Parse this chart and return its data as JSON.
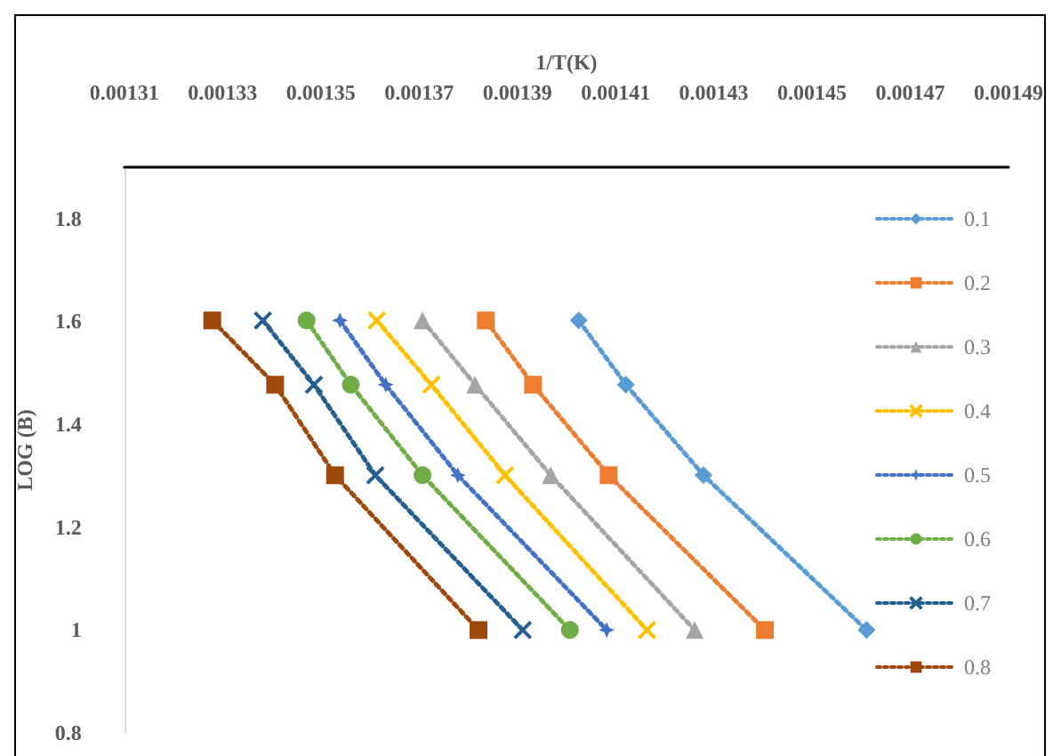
{
  "chart_data": {
    "type": "line",
    "xlabel": "1/T(K)",
    "ylabel": "LOG (B)",
    "xlim": [
      0.00131,
      0.00149
    ],
    "xticks": [
      0.00131,
      0.00133,
      0.00135,
      0.00137,
      0.00139,
      0.00141,
      0.00143,
      0.00145,
      0.00147,
      0.00149
    ],
    "ylim": [
      0.8,
      1.9
    ],
    "yticks": [
      0.8,
      1,
      1.2,
      1.4,
      1.6,
      1.8
    ],
    "grid": false,
    "legend": "right",
    "line_style": "dotted",
    "series": [
      {
        "name": "0.1",
        "color": "#5b9bd5",
        "marker": "diamond",
        "x": [
          0.0014025,
          0.0014121,
          0.0014279,
          0.0014611
        ],
        "values": [
          1.602,
          1.477,
          1.301,
          1.0
        ]
      },
      {
        "name": "0.2",
        "color": "#ed7d31",
        "marker": "square",
        "x": [
          0.0013836,
          0.0013932,
          0.0014086,
          0.0014404
        ],
        "values": [
          1.602,
          1.477,
          1.301,
          1.0
        ]
      },
      {
        "name": "0.3",
        "color": "#a5a5a5",
        "marker": "triangle",
        "x": [
          0.0013707,
          0.0013814,
          0.0013968,
          0.0014261
        ],
        "values": [
          1.602,
          1.477,
          1.301,
          1.0
        ]
      },
      {
        "name": "0.4",
        "color": "#ffc000",
        "marker": "cross",
        "x": [
          0.0013614,
          0.0013725,
          0.0013875,
          0.0014164
        ],
        "values": [
          1.602,
          1.477,
          1.301,
          1.0
        ]
      },
      {
        "name": "0.5",
        "color": "#4472c4",
        "marker": "star",
        "x": [
          0.0013539,
          0.0013632,
          0.0013779,
          0.0014082
        ],
        "values": [
          1.602,
          1.477,
          1.301,
          1.0
        ]
      },
      {
        "name": "0.6",
        "color": "#70ad47",
        "marker": "circle",
        "x": [
          0.0013471,
          0.0013561,
          0.0013707,
          0.0014007
        ],
        "values": [
          1.602,
          1.477,
          1.301,
          1.0
        ]
      },
      {
        "name": "0.7",
        "color": "#255e91",
        "marker": "cross",
        "x": [
          0.0013382,
          0.0013486,
          0.0013611,
          0.0013911
        ],
        "values": [
          1.602,
          1.477,
          1.301,
          1.0
        ]
      },
      {
        "name": "0.8",
        "color": "#9e480e",
        "marker": "square",
        "x": [
          0.0013279,
          0.0013407,
          0.0013529,
          0.0013821
        ],
        "values": [
          1.602,
          1.477,
          1.301,
          1.0
        ]
      }
    ]
  }
}
